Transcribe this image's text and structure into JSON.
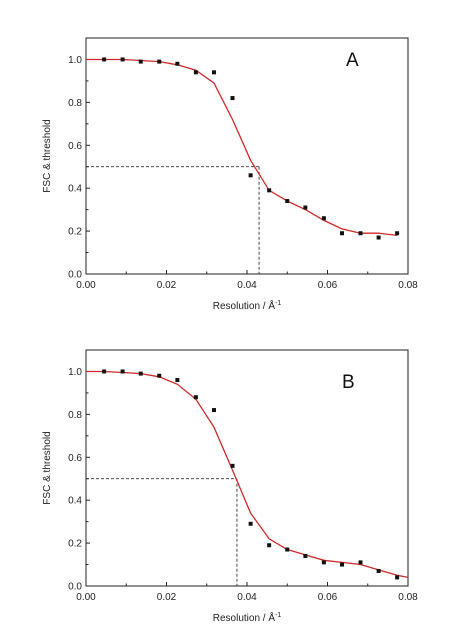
{
  "chart_data": [
    {
      "type": "scatter",
      "panel_label": "A",
      "xlabel": "Resolution / Å",
      "xlabel_superscript": "-1",
      "ylabel": "FSC & threshold",
      "xlim": [
        0,
        0.08
      ],
      "ylim": [
        0,
        1.1
      ],
      "x_ticks": [
        "0.00",
        "0.02",
        "0.04",
        "0.06",
        "0.08"
      ],
      "y_ticks": [
        "0.0",
        "0.2",
        "0.4",
        "0.6",
        "0.8",
        "1.0"
      ],
      "points": {
        "x": [
          0.0045,
          0.0091,
          0.0136,
          0.0182,
          0.0227,
          0.0273,
          0.0318,
          0.0364,
          0.0409,
          0.0455,
          0.05,
          0.0545,
          0.0591,
          0.0636,
          0.0682,
          0.0727,
          0.0773
        ],
        "y": [
          1.0,
          1.0,
          0.99,
          0.99,
          0.98,
          0.94,
          0.94,
          0.82,
          0.46,
          0.39,
          0.34,
          0.31,
          0.26,
          0.19,
          0.19,
          0.17,
          0.19
        ]
      },
      "fit_curve": {
        "x": [
          0.0,
          0.0045,
          0.0091,
          0.0136,
          0.0182,
          0.0227,
          0.0273,
          0.0318,
          0.0364,
          0.0409,
          0.0455,
          0.05,
          0.0545,
          0.0591,
          0.0636,
          0.0682,
          0.0727,
          0.0773
        ],
        "y": [
          1.0,
          1.0,
          1.0,
          0.995,
          0.99,
          0.975,
          0.95,
          0.89,
          0.72,
          0.53,
          0.39,
          0.34,
          0.3,
          0.25,
          0.21,
          0.19,
          0.19,
          0.18
        ]
      },
      "threshold": {
        "x": 0.043,
        "y": 0.5
      },
      "colors": {
        "points": "#111111",
        "fit": "#cc2a2a",
        "threshold": "#333333"
      }
    },
    {
      "type": "scatter",
      "panel_label": "B",
      "xlabel": "Resolution / Å",
      "xlabel_superscript": "-1",
      "ylabel": "FSC & threshold",
      "xlim": [
        0,
        0.08
      ],
      "ylim": [
        0,
        1.1
      ],
      "x_ticks": [
        "0.00",
        "0.02",
        "0.04",
        "0.06",
        "0.08"
      ],
      "y_ticks": [
        "0.0",
        "0.2",
        "0.4",
        "0.6",
        "0.8",
        "1.0"
      ],
      "points": {
        "x": [
          0.0045,
          0.0091,
          0.0136,
          0.0182,
          0.0227,
          0.0273,
          0.0318,
          0.0364,
          0.0409,
          0.0455,
          0.05,
          0.0545,
          0.0591,
          0.0636,
          0.0682,
          0.0727,
          0.0773
        ],
        "y": [
          1.0,
          1.0,
          0.99,
          0.98,
          0.96,
          0.88,
          0.82,
          0.56,
          0.29,
          0.19,
          0.17,
          0.14,
          0.11,
          0.1,
          0.11,
          0.07,
          0.04
        ]
      },
      "fit_curve": {
        "x": [
          0.0,
          0.0045,
          0.0091,
          0.0136,
          0.0182,
          0.0227,
          0.0273,
          0.0318,
          0.0364,
          0.0409,
          0.0455,
          0.05,
          0.0545,
          0.0591,
          0.0636,
          0.0682,
          0.0727,
          0.0773,
          0.08
        ],
        "y": [
          1.0,
          1.0,
          0.995,
          0.99,
          0.975,
          0.94,
          0.87,
          0.74,
          0.54,
          0.34,
          0.22,
          0.17,
          0.145,
          0.12,
          0.11,
          0.1,
          0.075,
          0.05,
          0.04
        ]
      },
      "threshold": {
        "x": 0.0375,
        "y": 0.5
      },
      "colors": {
        "points": "#111111",
        "fit": "#cc2a2a",
        "threshold": "#333333"
      }
    }
  ]
}
